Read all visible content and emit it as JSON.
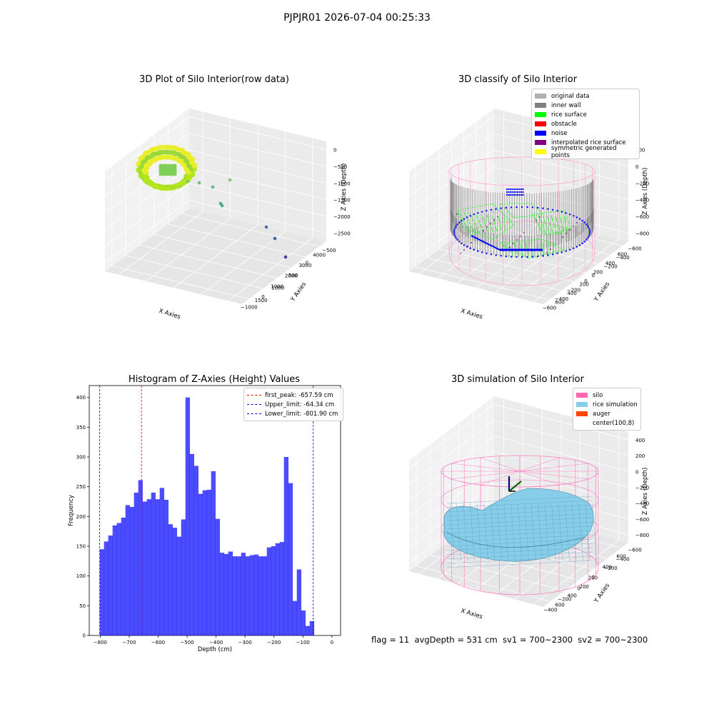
{
  "suptitle": "PJPJR01 2026-07-04 00:25:33",
  "chart_data": [
    {
      "type": "scatter",
      "title": "3D Plot of Silo Interior(row data)",
      "xlabel": "X Axies",
      "ylabel": "Y Axies",
      "zlabel": "Z Axies (Depth)",
      "xticks": [
        "−1000",
        "0",
        "1000",
        "2000",
        "3000",
        "4000"
      ],
      "yticks": [
        "−500",
        "0",
        "500",
        "1000",
        "1500"
      ],
      "zticks": [
        "0",
        "−500",
        "−1000",
        "−1500",
        "−2000",
        "−2500"
      ],
      "outliers": [
        {
          "x": 1200,
          "y": 1300,
          "z": -950
        },
        {
          "x": 1500,
          "y": 800,
          "z": -1050
        },
        {
          "x": 1900,
          "y": 900,
          "z": -1450
        },
        {
          "x": 1950,
          "y": 850,
          "z": -1500
        },
        {
          "x": 3000,
          "y": 200,
          "z": -2300
        },
        {
          "x": 3300,
          "y": -100,
          "z": -2500
        },
        {
          "x": 3600,
          "y": -400,
          "z": -2700
        }
      ]
    },
    {
      "type": "scatter",
      "title": "3D classify of Silo Interior",
      "xlabel": "X Axies",
      "ylabel": "Y Axies",
      "zlabel": "Z Axies (Depth)",
      "xticks": [
        "−600",
        "−400",
        "−200",
        "0",
        "200",
        "400",
        "600"
      ],
      "yticks": [
        "−600",
        "−400",
        "−200",
        "0",
        "200",
        "400",
        "600"
      ],
      "zticks": [
        "200",
        "0",
        "−200",
        "−400",
        "−600",
        "−800"
      ],
      "legend": [
        {
          "label": "original data",
          "color": "#b0b0b0"
        },
        {
          "label": "inner wall",
          "color": "#808080"
        },
        {
          "label": "rice surface",
          "color": "#00ff00"
        },
        {
          "label": "obstacle",
          "color": "#ff0000"
        },
        {
          "label": "noise",
          "color": "#0000ff"
        },
        {
          "label": "interpolated rice surface",
          "color": "#800080"
        },
        {
          "label": "symmetric generated points",
          "color": "#ffff00"
        }
      ]
    },
    {
      "type": "bar",
      "title": "Histogram of Z-Axies (Height) Values",
      "xlabel": "Depth (cm)",
      "ylabel": "Frequency",
      "xlim": [
        -838,
        30
      ],
      "ylim": [
        0,
        420
      ],
      "xticks": [
        "−800",
        "−700",
        "−600",
        "−500",
        "−400",
        "−300",
        "−200",
        "−100",
        "0"
      ],
      "yticks": [
        "0",
        "50",
        "100",
        "150",
        "200",
        "250",
        "300",
        "350",
        "400"
      ],
      "bin_start": -801.9,
      "bin_width": 14.8,
      "values": [
        145,
        158,
        168,
        185,
        189,
        198,
        219,
        216,
        240,
        261,
        225,
        229,
        240,
        229,
        248,
        228,
        187,
        181,
        166,
        195,
        400,
        305,
        285,
        238,
        244,
        245,
        276,
        196,
        139,
        137,
        141,
        133,
        133,
        139,
        133,
        135,
        136,
        133,
        133,
        148,
        150,
        155,
        157,
        300,
        256,
        58,
        111,
        42,
        16,
        24
      ],
      "color": "#0000ff",
      "vlines": [
        {
          "label": "first_peak: -657.59 cm",
          "value": -657.59,
          "color": "#ff0000"
        },
        {
          "label": "Upper_limit: -64.34 cm",
          "value": -64.34,
          "color": "#0000ff"
        },
        {
          "label": "Lower_limit: -801.90 cm",
          "value": -801.9,
          "color": "#0000ff"
        }
      ]
    },
    {
      "type": "area",
      "title": "3D simulation of Silo Interior",
      "xlabel": "X Axies",
      "ylabel": "Y Axies",
      "zlabel": "Z Axies (Depth)",
      "xticks": [
        "−400",
        "−200",
        "0",
        "200",
        "400",
        "600"
      ],
      "yticks": [
        "−600",
        "−400",
        "−200",
        "0",
        "200",
        "400",
        "600"
      ],
      "zticks": [
        "400",
        "200",
        "0",
        "−200",
        "−400",
        "−600",
        "−800"
      ],
      "legend": [
        {
          "label": "silo",
          "color": "#ff69b4"
        },
        {
          "label": "rice simulation",
          "color": "#87ceeb"
        },
        {
          "label": "auger",
          "color": "#ff4500"
        },
        {
          "label": "center(100,8)",
          "color": "#ffffff"
        }
      ]
    }
  ],
  "status": "flag = 11  avgDepth = 531 cm  sv1 = 700~2300  sv2 = 700~2300"
}
